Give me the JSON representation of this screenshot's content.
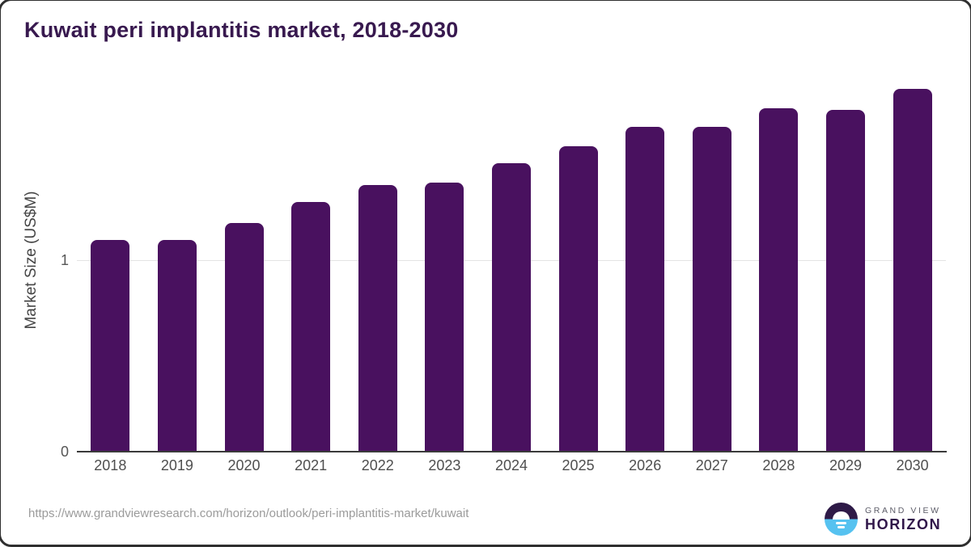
{
  "title": "Kuwait peri implantitis market, 2018-2030",
  "source_url": "https://www.grandviewresearch.com/horizon/outlook/peri-implantitis-market/kuwait",
  "logo": {
    "top_text": "GRAND VIEW",
    "bottom_text": "HORIZON"
  },
  "colors": {
    "bar": "#49115f",
    "title": "#38194f",
    "axis_line": "#3a3a3a",
    "gridline": "#e4e4e4",
    "tick_text": "#565656",
    "url_text": "#9b9b9b",
    "logo_purple": "#2e1a47",
    "logo_blue": "#56c2f0"
  },
  "chart_data": {
    "type": "bar",
    "title": "Kuwait peri implantitis market, 2018-2030",
    "categories": [
      "2018",
      "2019",
      "2020",
      "2021",
      "2022",
      "2023",
      "2024",
      "2025",
      "2026",
      "2027",
      "2028",
      "2029",
      "2030"
    ],
    "values": [
      1.1,
      1.1,
      1.19,
      1.3,
      1.39,
      1.4,
      1.5,
      1.59,
      1.69,
      1.69,
      1.79,
      1.78,
      1.89
    ],
    "xlabel": "",
    "ylabel": "Market Size (US$M)",
    "yticks": [
      0,
      1
    ],
    "ylim": [
      0,
      1.95
    ],
    "grid": "horizontal line at y=1 only",
    "legend": "none",
    "bar_color": "#49115f",
    "units": "US$M"
  }
}
